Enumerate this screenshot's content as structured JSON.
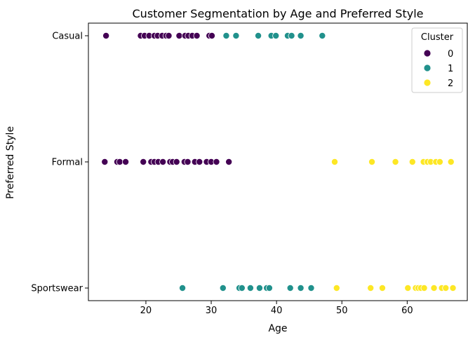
{
  "chart_data": {
    "type": "scatter",
    "title": "Customer Segmentation by Age and Preferred Style",
    "xlabel": "Age",
    "ylabel": "Preferred Style",
    "xlim": [
      11.2,
      69.2
    ],
    "x_ticks": [
      20,
      30,
      40,
      50,
      60
    ],
    "categories": [
      "Sportswear",
      "Formal",
      "Casual"
    ],
    "grid": false,
    "legend": {
      "title": "Cluster",
      "position": "top-right"
    },
    "colors": {
      "0": "#440154",
      "1": "#21918c",
      "2": "#fde725"
    },
    "series": [
      {
        "name": "0",
        "color": "#440154",
        "points": [
          {
            "x": 13.9,
            "y": "Casual"
          },
          {
            "x": 19.2,
            "y": "Casual"
          },
          {
            "x": 19.8,
            "y": "Casual"
          },
          {
            "x": 20.5,
            "y": "Casual"
          },
          {
            "x": 21.3,
            "y": "Casual"
          },
          {
            "x": 21.8,
            "y": "Casual"
          },
          {
            "x": 22.5,
            "y": "Casual"
          },
          {
            "x": 23.1,
            "y": "Casual"
          },
          {
            "x": 23.5,
            "y": "Casual"
          },
          {
            "x": 25.1,
            "y": "Casual"
          },
          {
            "x": 26.0,
            "y": "Casual"
          },
          {
            "x": 26.5,
            "y": "Casual"
          },
          {
            "x": 27.1,
            "y": "Casual"
          },
          {
            "x": 27.8,
            "y": "Casual"
          },
          {
            "x": 29.7,
            "y": "Casual"
          },
          {
            "x": 30.1,
            "y": "Casual"
          },
          {
            "x": 13.7,
            "y": "Formal"
          },
          {
            "x": 15.6,
            "y": "Formal"
          },
          {
            "x": 16.0,
            "y": "Formal"
          },
          {
            "x": 16.9,
            "y": "Formal"
          },
          {
            "x": 19.6,
            "y": "Formal"
          },
          {
            "x": 20.8,
            "y": "Formal"
          },
          {
            "x": 21.3,
            "y": "Formal"
          },
          {
            "x": 21.9,
            "y": "Formal"
          },
          {
            "x": 22.6,
            "y": "Formal"
          },
          {
            "x": 23.7,
            "y": "Formal"
          },
          {
            "x": 24.1,
            "y": "Formal"
          },
          {
            "x": 24.7,
            "y": "Formal"
          },
          {
            "x": 25.9,
            "y": "Formal"
          },
          {
            "x": 26.4,
            "y": "Formal"
          },
          {
            "x": 27.5,
            "y": "Formal"
          },
          {
            "x": 28.2,
            "y": "Formal"
          },
          {
            "x": 29.3,
            "y": "Formal"
          },
          {
            "x": 30.0,
            "y": "Formal"
          },
          {
            "x": 30.8,
            "y": "Formal"
          },
          {
            "x": 32.7,
            "y": "Formal"
          }
        ]
      },
      {
        "name": "1",
        "color": "#21918c",
        "points": [
          {
            "x": 32.3,
            "y": "Casual"
          },
          {
            "x": 33.8,
            "y": "Casual"
          },
          {
            "x": 37.2,
            "y": "Casual"
          },
          {
            "x": 39.2,
            "y": "Casual"
          },
          {
            "x": 39.9,
            "y": "Casual"
          },
          {
            "x": 41.7,
            "y": "Casual"
          },
          {
            "x": 42.3,
            "y": "Casual"
          },
          {
            "x": 43.7,
            "y": "Casual"
          },
          {
            "x": 47.0,
            "y": "Casual"
          },
          {
            "x": 25.6,
            "y": "Sportswear"
          },
          {
            "x": 31.8,
            "y": "Sportswear"
          },
          {
            "x": 34.3,
            "y": "Sportswear"
          },
          {
            "x": 34.7,
            "y": "Sportswear"
          },
          {
            "x": 36.0,
            "y": "Sportswear"
          },
          {
            "x": 37.4,
            "y": "Sportswear"
          },
          {
            "x": 38.5,
            "y": "Sportswear"
          },
          {
            "x": 38.9,
            "y": "Sportswear"
          },
          {
            "x": 42.1,
            "y": "Sportswear"
          },
          {
            "x": 43.7,
            "y": "Sportswear"
          },
          {
            "x": 45.3,
            "y": "Sportswear"
          }
        ]
      },
      {
        "name": "2",
        "color": "#fde725",
        "points": [
          {
            "x": 48.9,
            "y": "Formal"
          },
          {
            "x": 54.6,
            "y": "Formal"
          },
          {
            "x": 58.2,
            "y": "Formal"
          },
          {
            "x": 60.8,
            "y": "Formal"
          },
          {
            "x": 62.5,
            "y": "Formal"
          },
          {
            "x": 63.1,
            "y": "Formal"
          },
          {
            "x": 63.6,
            "y": "Formal"
          },
          {
            "x": 64.4,
            "y": "Formal"
          },
          {
            "x": 65.0,
            "y": "Formal"
          },
          {
            "x": 66.7,
            "y": "Formal"
          },
          {
            "x": 49.2,
            "y": "Sportswear"
          },
          {
            "x": 54.4,
            "y": "Sportswear"
          },
          {
            "x": 56.2,
            "y": "Sportswear"
          },
          {
            "x": 60.1,
            "y": "Sportswear"
          },
          {
            "x": 61.3,
            "y": "Sportswear"
          },
          {
            "x": 61.7,
            "y": "Sportswear"
          },
          {
            "x": 62.1,
            "y": "Sportswear"
          },
          {
            "x": 62.6,
            "y": "Sportswear"
          },
          {
            "x": 64.1,
            "y": "Sportswear"
          },
          {
            "x": 65.3,
            "y": "Sportswear"
          },
          {
            "x": 65.9,
            "y": "Sportswear"
          },
          {
            "x": 67.0,
            "y": "Sportswear"
          }
        ]
      }
    ]
  }
}
